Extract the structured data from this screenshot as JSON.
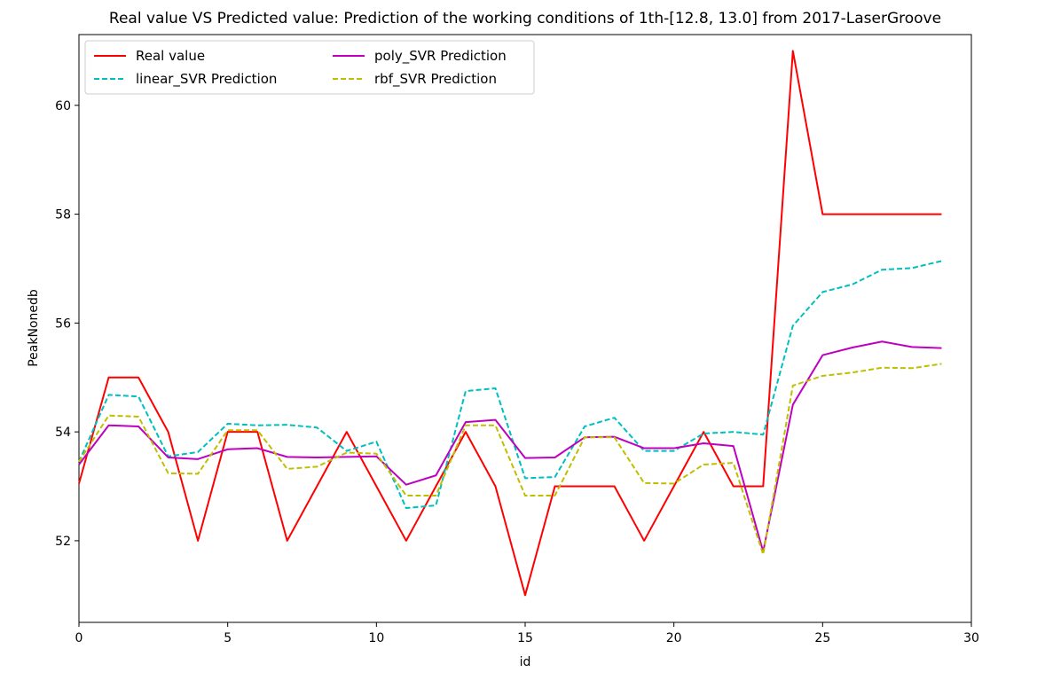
{
  "chart_data": {
    "type": "line",
    "title": "Real value VS Predicted value: Prediction of the working conditions of 1th-[12.8, 13.0] from 2017-LaserGroove",
    "xlabel": "id",
    "ylabel": "PeakNonedb",
    "xlim": [
      0,
      30
    ],
    "ylim": [
      50.5,
      61.3
    ],
    "xticks": [
      0,
      5,
      10,
      15,
      20,
      25,
      30
    ],
    "yticks": [
      52,
      54,
      56,
      58,
      60
    ],
    "grid": false,
    "legend_position": "top-left",
    "x": [
      0,
      1,
      2,
      3,
      4,
      5,
      6,
      7,
      8,
      9,
      10,
      11,
      12,
      13,
      14,
      15,
      16,
      17,
      18,
      19,
      20,
      21,
      22,
      23,
      24,
      25,
      26,
      27,
      28,
      29
    ],
    "series": [
      {
        "name": "Real value",
        "color": "#ff0000",
        "style": "solid",
        "values": [
          53.05,
          55,
          55,
          54,
          52,
          54,
          54,
          52,
          53,
          54,
          53,
          52,
          53,
          54,
          53,
          51,
          53,
          53,
          53,
          52,
          53,
          54,
          53,
          53,
          61,
          58,
          58,
          58,
          58,
          58
        ]
      },
      {
        "name": "linear_SVR Prediction",
        "color": "#00bfbf",
        "style": "dashed",
        "values": [
          53.45,
          54.68,
          54.65,
          53.55,
          53.63,
          54.15,
          54.12,
          54.13,
          54.08,
          53.65,
          53.82,
          52.6,
          52.65,
          54.75,
          54.8,
          53.15,
          53.17,
          54.1,
          54.26,
          53.65,
          53.65,
          53.97,
          54,
          53.95,
          55.95,
          56.57,
          56.71,
          56.98,
          57.01,
          57.14
        ]
      },
      {
        "name": "poly_SVR Prediction",
        "color": "#bf00bf",
        "style": "solid",
        "values": [
          53.4,
          54.12,
          54.1,
          53.53,
          53.5,
          53.68,
          53.7,
          53.54,
          53.53,
          53.54,
          53.55,
          53.03,
          53.2,
          54.18,
          54.22,
          53.52,
          53.53,
          53.9,
          53.91,
          53.7,
          53.7,
          53.79,
          53.74,
          51.8,
          54.5,
          55.41,
          55.55,
          55.66,
          55.56,
          55.54
        ]
      },
      {
        "name": "rbf_SVR Prediction",
        "color": "#bfbf00",
        "style": "dashed",
        "values": [
          53.45,
          54.3,
          54.28,
          53.24,
          53.23,
          54.03,
          54.03,
          53.32,
          53.36,
          53.62,
          53.6,
          52.83,
          52.83,
          54.12,
          54.12,
          52.83,
          52.83,
          53.9,
          53.9,
          53.06,
          53.05,
          53.4,
          53.43,
          51.75,
          54.85,
          55.03,
          55.09,
          55.18,
          55.17,
          55.25
        ]
      }
    ]
  }
}
